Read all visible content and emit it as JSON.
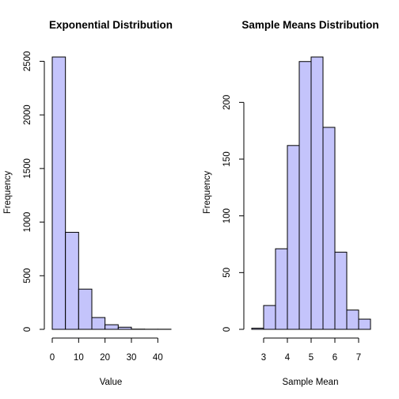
{
  "chart_data": [
    {
      "type": "bar",
      "title": "Exponential Distribution",
      "xlabel": "Value",
      "ylabel": "Frequency",
      "bins": [
        {
          "from": 0,
          "to": 5,
          "value": 2540
        },
        {
          "from": 5,
          "to": 10,
          "value": 905
        },
        {
          "from": 10,
          "to": 15,
          "value": 375
        },
        {
          "from": 15,
          "to": 20,
          "value": 110
        },
        {
          "from": 20,
          "to": 25,
          "value": 43
        },
        {
          "from": 25,
          "to": 30,
          "value": 20
        },
        {
          "from": 30,
          "to": 35,
          "value": 2
        },
        {
          "from": 35,
          "to": 40,
          "value": 1
        },
        {
          "from": 40,
          "to": 45,
          "value": 1
        }
      ],
      "xlim": [
        0,
        45
      ],
      "ylim": [
        0,
        2540
      ],
      "xticks": [
        0,
        10,
        20,
        30,
        40
      ],
      "yticks": [
        0,
        500,
        1000,
        1500,
        2000,
        2500
      ],
      "bar_color": "#c4c4fb"
    },
    {
      "type": "bar",
      "title": "Sample Means Distribution",
      "xlabel": "Sample Mean",
      "ylabel": "Frequency",
      "bins": [
        {
          "from": 2.5,
          "to": 3.0,
          "value": 1
        },
        {
          "from": 3.0,
          "to": 3.5,
          "value": 21
        },
        {
          "from": 3.5,
          "to": 4.0,
          "value": 71
        },
        {
          "from": 4.0,
          "to": 4.5,
          "value": 162
        },
        {
          "from": 4.5,
          "to": 5.0,
          "value": 236
        },
        {
          "from": 5.0,
          "to": 5.5,
          "value": 240
        },
        {
          "from": 5.5,
          "to": 6.0,
          "value": 178
        },
        {
          "from": 6.0,
          "to": 6.5,
          "value": 68
        },
        {
          "from": 6.5,
          "to": 7.0,
          "value": 17
        },
        {
          "from": 7.0,
          "to": 7.5,
          "value": 9
        }
      ],
      "xlim": [
        2.5,
        7.5
      ],
      "ylim": [
        0,
        240
      ],
      "xticks": [
        3,
        4,
        5,
        6,
        7
      ],
      "yticks": [
        0,
        50,
        100,
        150,
        200
      ],
      "bar_color": "#c4c4fb"
    }
  ]
}
